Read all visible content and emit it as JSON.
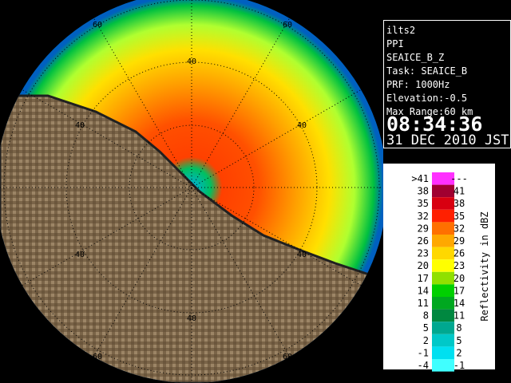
{
  "info": {
    "lines": [
      "ilts2",
      "PPI",
      "SEAICE_B_Z",
      "Task: SEAICE_B",
      "PRF: 1000Hz",
      "Elevation:-0.5",
      "Max Range:60 km"
    ],
    "time": "08:34:36",
    "date": "31 DEC 2010 JST"
  },
  "legend": {
    "title": "Reflectivity in dBZ",
    "rows": [
      {
        "low": ">41",
        "high": "---",
        "color": "#ff30ff"
      },
      {
        "low": "38",
        "high": "41",
        "color": "#a00030"
      },
      {
        "low": "35",
        "high": "38",
        "color": "#d80010"
      },
      {
        "low": "32",
        "high": "35",
        "color": "#ff2000"
      },
      {
        "low": "29",
        "high": "32",
        "color": "#ff7000"
      },
      {
        "low": "26",
        "high": "29",
        "color": "#ffa800"
      },
      {
        "low": "23",
        "high": "26",
        "color": "#ffd800"
      },
      {
        "low": "20",
        "high": "23",
        "color": "#ffff00"
      },
      {
        "low": "17",
        "high": "20",
        "color": "#90e000"
      },
      {
        "low": "14",
        "high": "17",
        "color": "#00d000"
      },
      {
        "low": "11",
        "high": "14",
        "color": "#00a820"
      },
      {
        "low": "8",
        "high": "11",
        "color": "#008840"
      },
      {
        "low": "5",
        "high": "8",
        "color": "#00a890"
      },
      {
        "low": "2",
        "high": "5",
        "color": "#00c8c8"
      },
      {
        "low": "-1",
        "high": "2",
        "color": "#00e0f0"
      },
      {
        "low": "-4",
        "high": "-1",
        "color": "#40ffff"
      }
    ]
  },
  "map": {
    "ring_labels": [
      "60",
      "60",
      "40",
      "40",
      "40",
      "40",
      "40",
      "40",
      "60",
      "60"
    ]
  }
}
